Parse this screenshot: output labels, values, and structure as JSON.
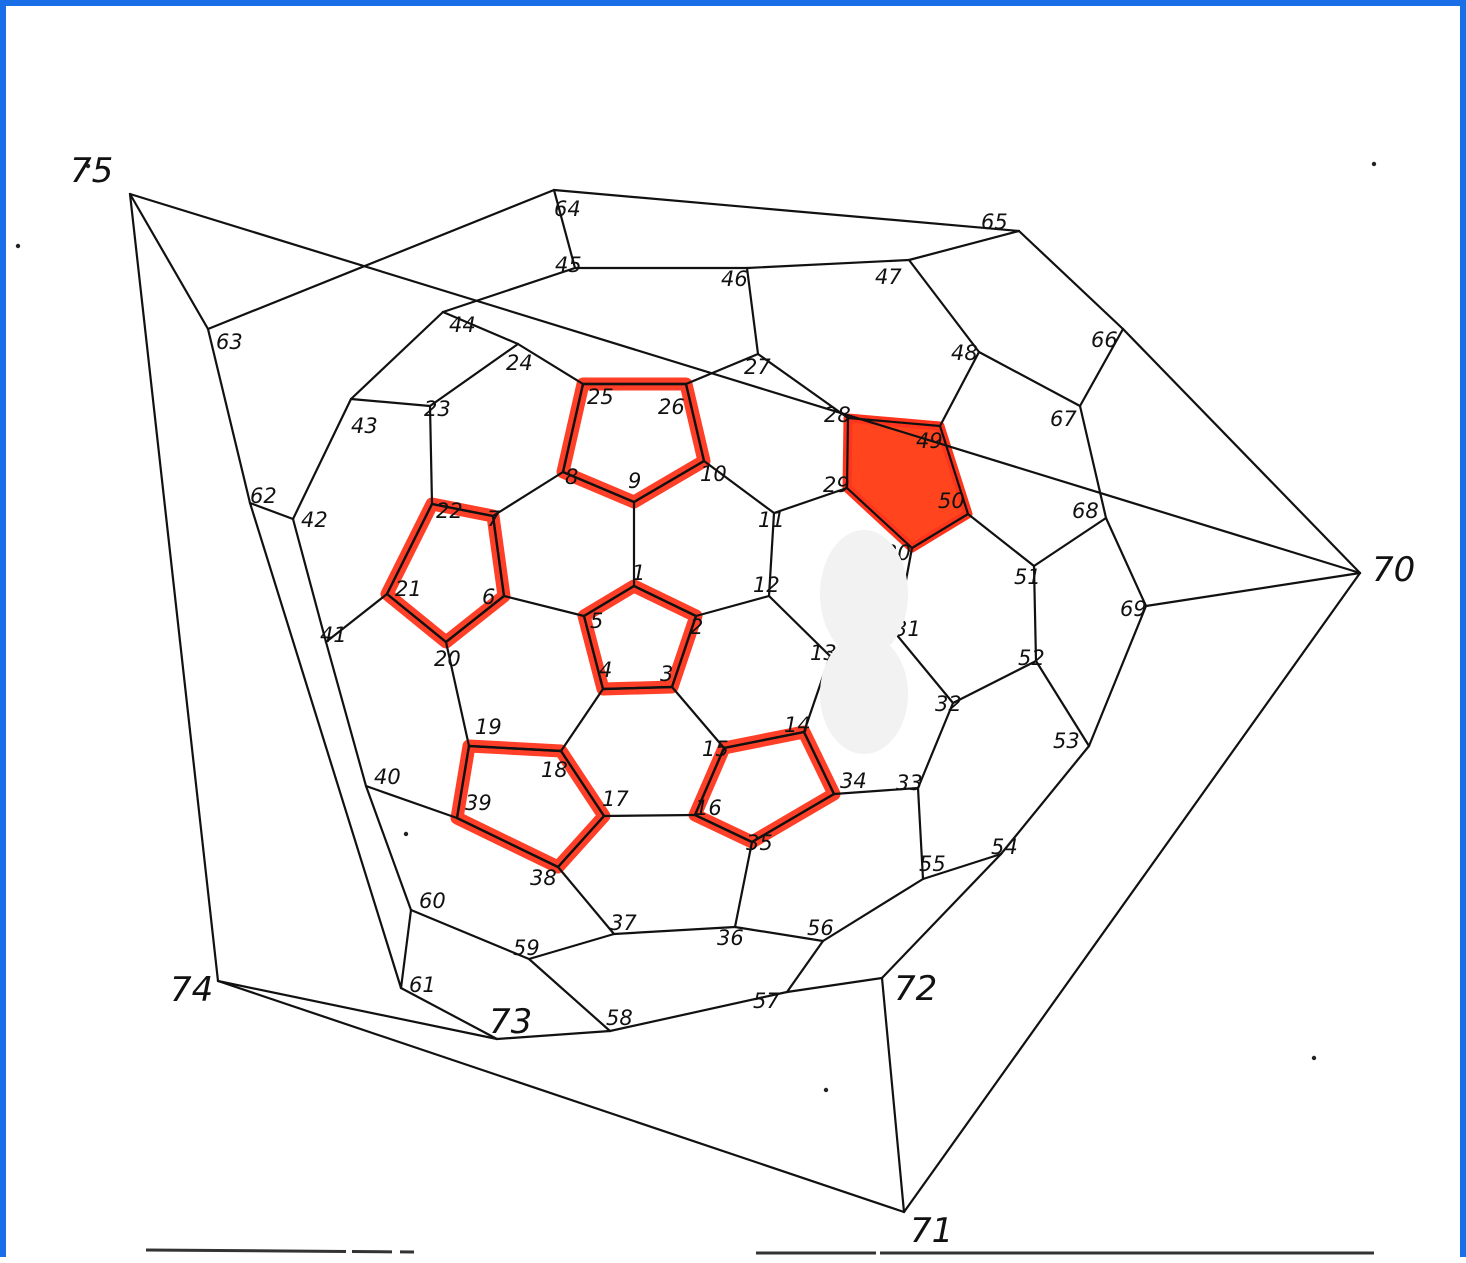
{
  "diagram": {
    "labels": [
      "1",
      "2",
      "3",
      "4",
      "5",
      "6",
      "7",
      "8",
      "9",
      "10",
      "11",
      "12",
      "13",
      "14",
      "15",
      "16",
      "17",
      "18",
      "19",
      "20",
      "21",
      "22",
      "23",
      "24",
      "25",
      "26",
      "27",
      "28",
      "29",
      "30",
      "31",
      "32",
      "33",
      "34",
      "35",
      "36",
      "37",
      "38",
      "39",
      "40",
      "41",
      "42",
      "43",
      "44",
      "45",
      "46",
      "47",
      "48",
      "49",
      "50",
      "51",
      "52",
      "53",
      "54",
      "55",
      "56",
      "57",
      "58",
      "59",
      "60",
      "61",
      "62",
      "63",
      "64",
      "65",
      "66",
      "67",
      "68",
      "69",
      "70",
      "71",
      "72",
      "73",
      "74",
      "75"
    ],
    "highlighted_rings": [
      [
        "1",
        "2",
        "3",
        "4",
        "5"
      ],
      [
        "6",
        "7",
        "22",
        "21",
        "20"
      ],
      [
        "8",
        "9",
        "10",
        "26",
        "25"
      ],
      [
        "14",
        "15",
        "16",
        "35",
        "34"
      ],
      [
        "17",
        "18",
        "19",
        "39",
        "38"
      ]
    ],
    "filled_ring": [
      "28",
      "49",
      "50",
      "30",
      "29"
    ],
    "colors": {
      "highlight": "#ff2a10",
      "border": "#1a6ee8",
      "ink": "#111111"
    }
  }
}
